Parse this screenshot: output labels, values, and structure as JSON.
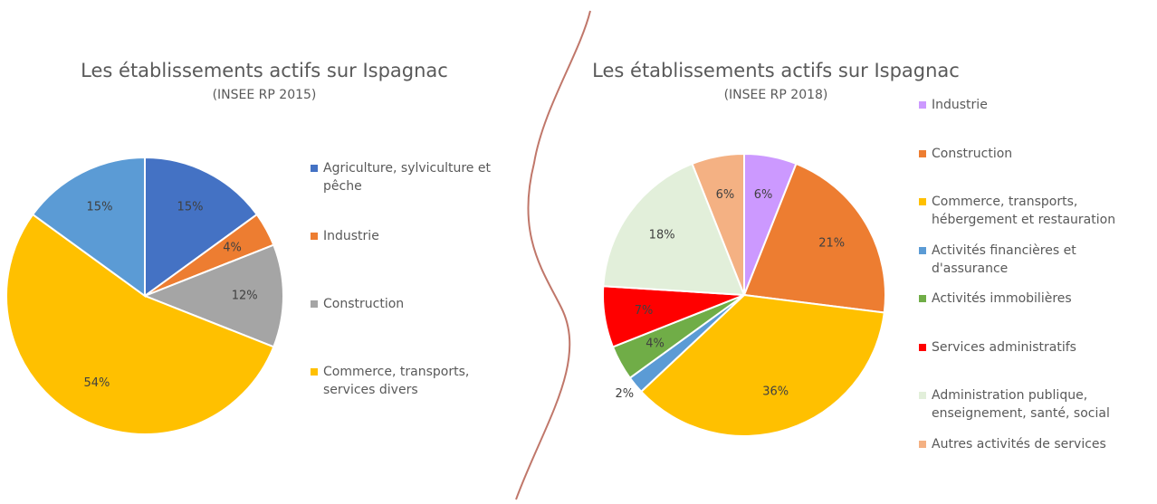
{
  "chart_data": [
    {
      "type": "pie",
      "title": "Les établissements actifs sur Ispagnac",
      "subtitle": "(INSEE RP 2015)",
      "categories": [
        "Agriculture, sylviculture et pêche",
        "Industrie",
        "Construction",
        "Commerce, transports, services divers",
        null
      ],
      "values": [
        15,
        4,
        12,
        54,
        15
      ],
      "value_labels": [
        "15%",
        "4%",
        "12%",
        "54%",
        "15%"
      ],
      "colors": [
        "#4472c4",
        "#ed7d31",
        "#a5a5a5",
        "#ffc000",
        "#5b9bd5"
      ]
    },
    {
      "type": "pie",
      "title": "Les établissements actifs sur Ispagnac",
      "subtitle": "(INSEE RP 2018)",
      "categories": [
        "Industrie",
        "Construction",
        "Commerce, transports, hébergement et restauration",
        "Activités financières et d'assurance",
        "Activités immobilières",
        "Services administratifs",
        "Administration publique, enseignement, santé, social",
        "Autres activités de services"
      ],
      "values": [
        6,
        21,
        36,
        2,
        4,
        7,
        18,
        6
      ],
      "value_labels": [
        "6%",
        "21%",
        "36%",
        "2%",
        "4%",
        "7%",
        "18%",
        "6%"
      ],
      "colors": [
        "#cc99ff",
        "#ed7d31",
        "#ffc000",
        "#5b9bd5",
        "#70ad47",
        "#ff0000",
        "#e2efda",
        "#f4b183"
      ]
    }
  ]
}
